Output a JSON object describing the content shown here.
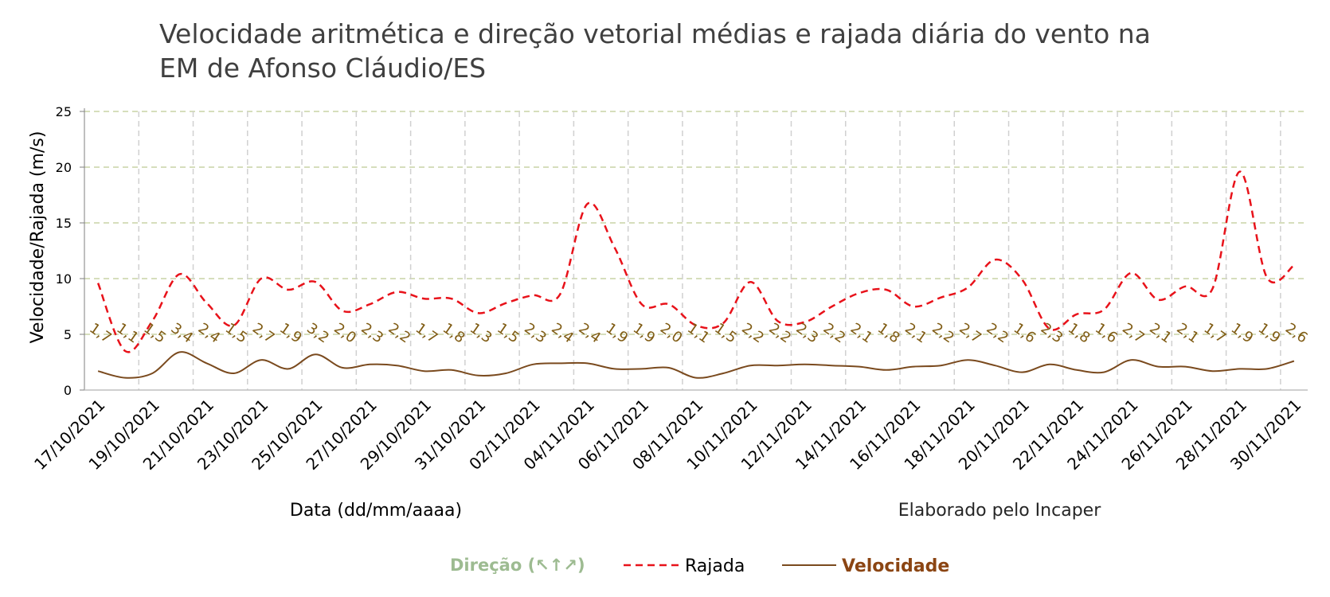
{
  "chart_data": {
    "type": "line",
    "title_line1": "Velocidade aritmética e direção vetorial médias e rajada diária do vento na",
    "title_line2": "EM de Afonso Cláudio/ES",
    "xlabel": "Data (dd/mm/aaaa)",
    "ylabel": "Velocidade/Rajada (m/s)",
    "credit": "Elaborado pelo Incaper",
    "ylim": [
      0,
      25
    ],
    "yticks": [
      "0",
      "5",
      "10",
      "15",
      "20",
      "25"
    ],
    "grid": true,
    "legend_position": "bottom",
    "x": [
      "17/10/2021",
      "18/10/2021",
      "19/10/2021",
      "20/10/2021",
      "21/10/2021",
      "22/10/2021",
      "23/10/2021",
      "24/10/2021",
      "25/10/2021",
      "26/10/2021",
      "27/10/2021",
      "28/10/2021",
      "29/10/2021",
      "30/10/2021",
      "31/10/2021",
      "01/11/2021",
      "02/11/2021",
      "03/11/2021",
      "04/11/2021",
      "05/11/2021",
      "06/11/2021",
      "07/11/2021",
      "08/11/2021",
      "09/11/2021",
      "10/11/2021",
      "11/11/2021",
      "12/11/2021",
      "13/11/2021",
      "14/11/2021",
      "15/11/2021",
      "16/11/2021",
      "17/11/2021",
      "18/11/2021",
      "19/11/2021",
      "20/11/2021",
      "21/11/2021",
      "22/11/2021",
      "23/11/2021",
      "24/11/2021",
      "25/11/2021",
      "26/11/2021",
      "27/11/2021",
      "28/11/2021",
      "29/11/2021",
      "30/11/2021"
    ],
    "xtick_labels": [
      "17/10/2021",
      "19/10/2021",
      "21/10/2021",
      "23/10/2021",
      "25/10/2021",
      "27/10/2021",
      "29/10/2021",
      "31/10/2021",
      "02/11/2021",
      "04/11/2021",
      "06/11/2021",
      "08/11/2021",
      "10/11/2021",
      "12/11/2021",
      "14/11/2021",
      "16/11/2021",
      "18/11/2021",
      "20/11/2021",
      "22/11/2021",
      "24/11/2021",
      "26/11/2021",
      "28/11/2021",
      "30/11/2021"
    ],
    "series": [
      {
        "name": "Rajada",
        "color": "#e8121a",
        "values": [
          9.6,
          3.5,
          6.2,
          10.4,
          7.8,
          5.8,
          10.0,
          9.0,
          9.7,
          7.1,
          7.7,
          8.8,
          8.2,
          8.2,
          6.9,
          7.8,
          8.5,
          8.6,
          16.7,
          12.8,
          7.7,
          7.7,
          5.8,
          6.0,
          9.7,
          6.2,
          6.1,
          7.5,
          8.7,
          9.0,
          7.5,
          8.3,
          9.2,
          11.7,
          9.9,
          5.5,
          6.8,
          7.2,
          10.5,
          8.1,
          9.3,
          9.1,
          19.6,
          10.1,
          11.2
        ]
      },
      {
        "name": "Velocidade",
        "color": "#7a4a1e",
        "values": [
          1.7,
          1.1,
          1.5,
          3.4,
          2.4,
          1.5,
          2.7,
          1.9,
          3.2,
          2.0,
          2.3,
          2.2,
          1.7,
          1.8,
          1.3,
          1.5,
          2.3,
          2.4,
          2.4,
          1.9,
          1.9,
          2.0,
          1.1,
          1.5,
          2.2,
          2.2,
          2.3,
          2.2,
          2.1,
          1.8,
          2.1,
          2.2,
          2.7,
          2.2,
          1.6,
          2.3,
          1.8,
          1.6,
          2.7,
          2.1,
          2.1,
          1.7,
          1.9,
          1.9,
          2.6
        ],
        "labels": [
          "1,7",
          "1,1",
          "1,5",
          "3,4",
          "2,4",
          "1,5",
          "2,7",
          "1,9",
          "3,2",
          "2,0",
          "2,3",
          "2,2",
          "1,7",
          "1,8",
          "1,3",
          "1,5",
          "2,3",
          "2,4",
          "2,4",
          "1,9",
          "1,9",
          "2,0",
          "1,1",
          "1,5",
          "2,2",
          "2,2",
          "2,3",
          "2,2",
          "2,1",
          "1,8",
          "2,1",
          "2,2",
          "2,7",
          "2,2",
          "1,6",
          "2,3",
          "1,8",
          "1,6",
          "2,7",
          "2,1",
          "2,1",
          "1,7",
          "1,9",
          "1,9",
          "2,6"
        ]
      }
    ],
    "legend": {
      "direcao": "Direção (↖↑↗)",
      "direcao_color": "#9dbb91",
      "rajada": "Rajada",
      "velocidade": "Velocidade"
    }
  }
}
